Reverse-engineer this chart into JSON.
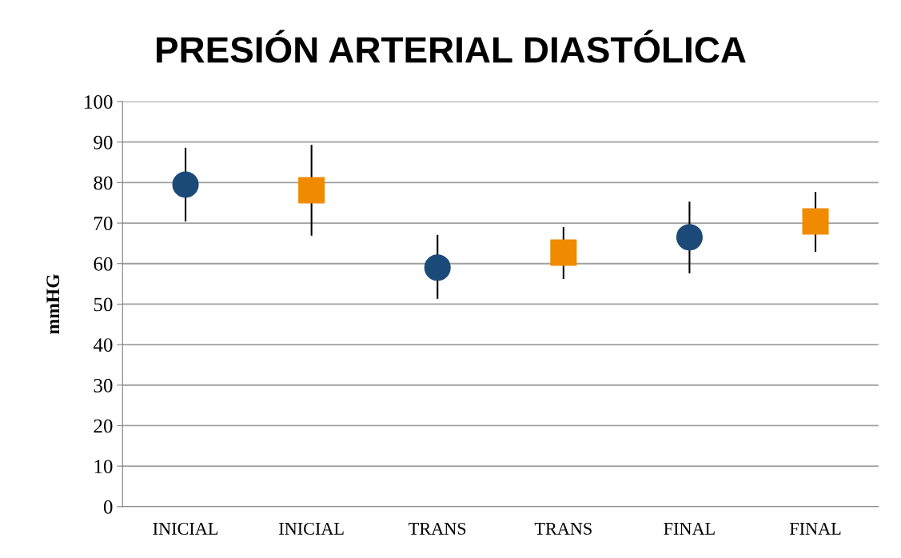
{
  "chart_data": {
    "type": "scatter",
    "title": "PRESIÓN ARTERIAL DIASTÓLICA",
    "ylabel": "mmHG",
    "categories": [
      "INICIAL",
      "INICIAL",
      "TRANS",
      "TRANS",
      "FINAL",
      "FINAL"
    ],
    "series": [
      {
        "color": "#1c4a78",
        "marker": "circle",
        "values": [
          79.5,
          null,
          59.0,
          null,
          66.5,
          null
        ],
        "errors": [
          [
            70.4,
            88.6
          ],
          null,
          [
            51.3,
            67.1
          ],
          null,
          [
            57.6,
            75.3
          ],
          null
        ]
      },
      {
        "color": "#f08a00",
        "marker": "square",
        "values": [
          null,
          78.1,
          null,
          62.7,
          null,
          70.4
        ],
        "errors": [
          null,
          [
            66.9,
            89.3
          ],
          null,
          [
            56.2,
            69.0
          ],
          null,
          [
            62.9,
            77.7
          ]
        ]
      }
    ],
    "ylim": [
      0,
      100
    ],
    "yticks": [
      0,
      10,
      20,
      30,
      40,
      50,
      60,
      70,
      80,
      90,
      100
    ],
    "grid": "y",
    "legend": false
  }
}
